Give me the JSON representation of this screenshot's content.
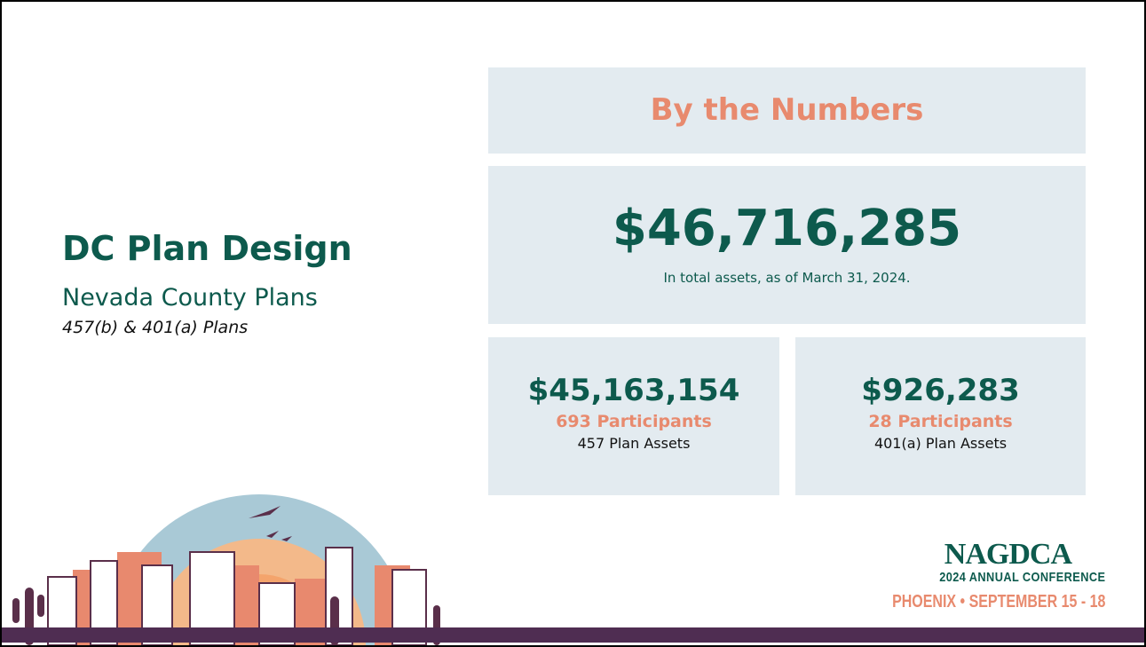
{
  "left": {
    "title": "DC Plan Design",
    "subtitle": "Nevada County Plans",
    "plans": "457(b) & 401(a) Plans"
  },
  "panel": {
    "header": "By the Numbers",
    "total": "$46,716,285",
    "total_note": "In total assets, as of March 31, 2024.",
    "cards": [
      {
        "amount": "$45,163,154",
        "participants": "693 Participants",
        "label": "457 Plan Assets"
      },
      {
        "amount": "$926,283",
        "participants": "28 Participants",
        "label": "401(a) Plan Assets"
      }
    ]
  },
  "logo": {
    "name": "NAGDCA",
    "event": "2024 ANNUAL CONFERENCE",
    "place": "PHOENIX • SEPTEMBER 15 - 18"
  }
}
